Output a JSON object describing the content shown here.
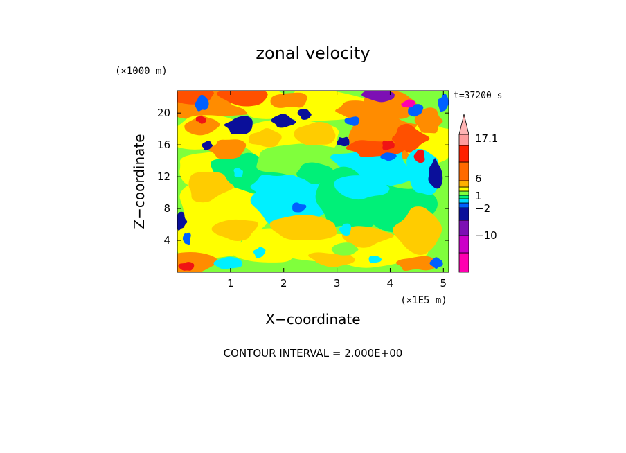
{
  "chart_data": {
    "type": "heatmap",
    "title": "zonal velocity",
    "xlabel": "X−coordinate",
    "ylabel": "Z−coordinate",
    "x_unit": "(×1E5 m)",
    "y_unit": "(×1000 m)",
    "xlim": [
      0,
      5.1
    ],
    "ylim": [
      0,
      22.8
    ],
    "x_ticks": [
      "1",
      "2",
      "3",
      "4",
      "5"
    ],
    "x_tick_values": [
      1,
      2,
      3,
      4,
      5
    ],
    "y_ticks": [
      "4",
      "8",
      "12",
      "16",
      "20"
    ],
    "y_tick_values": [
      4,
      8,
      12,
      16,
      20
    ],
    "time_label": "t=37200 s",
    "footer": "CONTOUR INTERVAL = 2.000E+00",
    "colorbar": {
      "levels": [
        -18,
        -14,
        -10,
        -6,
        -2,
        -1,
        0,
        0.5,
        1,
        2,
        6,
        10,
        14,
        17.1
      ],
      "colors": [
        "#ff00b0",
        "#cc00c8",
        "#7d0fb4",
        "#0a0f9a",
        "#0060ff",
        "#00d8ff",
        "#00f078",
        "#80ff3c",
        "#ffff00",
        "#ffb000",
        "#ff6a00",
        "#ff2000",
        "#ff9c9c",
        "#ffb4b4"
      ],
      "tick_labels": [
        "17.1",
        "6",
        "1",
        "−2",
        "−10"
      ],
      "tick_values": [
        17.1,
        6,
        1,
        -2,
        -10
      ]
    },
    "grid": false
  },
  "colors": {
    "magenta": "#ff00b0",
    "purple": "#7d0fb4",
    "dark_blue": "#0a0f9a",
    "blue": "#0060ff",
    "cyan": "#00f0ff",
    "green": "#00f078",
    "light_green": "#80ff3c",
    "yellow": "#ffff00",
    "light_orange": "#ffcc00",
    "orange": "#ff8c00",
    "red_orange": "#ff5000",
    "red": "#f01414",
    "pink": "#ffa0a0"
  }
}
